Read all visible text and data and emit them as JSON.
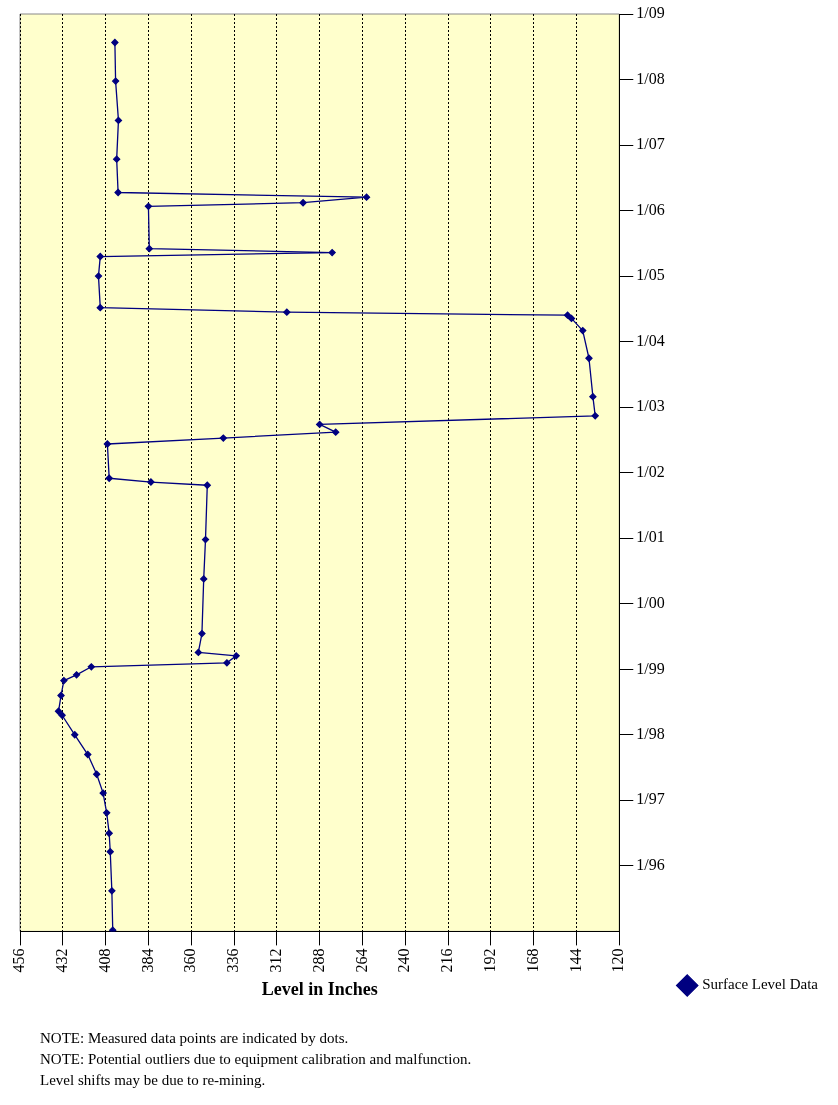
{
  "chart_data": {
    "type": "line",
    "orientation": "horizontal",
    "xlabel": "Level in Inches",
    "xlim": [
      456,
      120
    ],
    "xticks": [
      456,
      432,
      408,
      384,
      360,
      336,
      312,
      288,
      264,
      240,
      216,
      192,
      168,
      144,
      120
    ],
    "ylim": [
      "1995-01-01",
      "2009-01-01"
    ],
    "yticks": [
      {
        "value": "1996-01-01",
        "label": "1/96"
      },
      {
        "value": "1997-01-01",
        "label": "1/97"
      },
      {
        "value": "1998-01-01",
        "label": "1/98"
      },
      {
        "value": "1999-01-01",
        "label": "1/99"
      },
      {
        "value": "2000-01-01",
        "label": "1/00"
      },
      {
        "value": "2001-01-01",
        "label": "1/01"
      },
      {
        "value": "2002-01-01",
        "label": "1/02"
      },
      {
        "value": "2003-01-01",
        "label": "1/03"
      },
      {
        "value": "2004-01-01",
        "label": "1/04"
      },
      {
        "value": "2005-01-01",
        "label": "1/05"
      },
      {
        "value": "2006-01-01",
        "label": "1/06"
      },
      {
        "value": "2007-01-01",
        "label": "1/07"
      },
      {
        "value": "2008-01-01",
        "label": "1/08"
      },
      {
        "value": "2009-01-01",
        "label": "1/09"
      }
    ],
    "x": [
      "1995-01-08",
      "1995-08-15",
      "1996-03-20",
      "1996-07-01",
      "1996-10-23",
      "1997-02-10",
      "1997-05-26",
      "1997-09-13",
      "1998-01-01",
      "1998-04-20",
      "1998-05-12",
      "1998-08-08",
      "1998-10-30",
      "1998-12-01",
      "1999-01-15",
      "1999-02-06",
      "1999-03-17",
      "1999-04-05",
      "1999-07-19",
      "2000-05-19",
      "2000-12-24",
      "2001-10-23",
      "2001-11-10",
      "2001-12-01",
      "2002-06-10",
      "2002-07-13",
      "2002-08-15",
      "2002-09-27",
      "2002-11-14",
      "2003-03-01",
      "2003-10-01",
      "2004-03-03",
      "2004-05-10",
      "2004-05-28",
      "2004-06-14",
      "2004-07-09",
      "2005-01-01",
      "2005-04-20",
      "2005-05-12",
      "2005-06-03",
      "2006-01-25",
      "2006-02-14",
      "2006-03-17",
      "2006-04-12",
      "2006-10-15",
      "2007-05-19",
      "2007-12-24",
      "2008-07-26"
    ],
    "series": [
      {
        "name": "Surface Level Data",
        "color": "#000080",
        "values": [
          404,
          404.5,
          405.4,
          406,
          407.4,
          409.4,
          413,
          418,
          425.3,
          432.4,
          434.4,
          433,
          431.4,
          424.3,
          416,
          340,
          334.8,
          356,
          354,
          353,
          352,
          351,
          382.6,
          406,
          407,
          342,
          279,
          288,
          133.5,
          134.8,
          137,
          140.5,
          146.8,
          149,
          306.4,
          411,
          412,
          411,
          281,
          383.5,
          384,
          297.3,
          261.7,
          401,
          401.8,
          400.8,
          402.4,
          402.8
        ]
      }
    ],
    "marker": "diamond",
    "line_style": "solid",
    "grid": "x",
    "legend": "right",
    "annotations": [
      "NOTE: Measured data points are indicated by dots.",
      "NOTE: Potential outliers due to equipment calibration and malfunction.",
      "Level shifts may be due to re-mining."
    ]
  }
}
